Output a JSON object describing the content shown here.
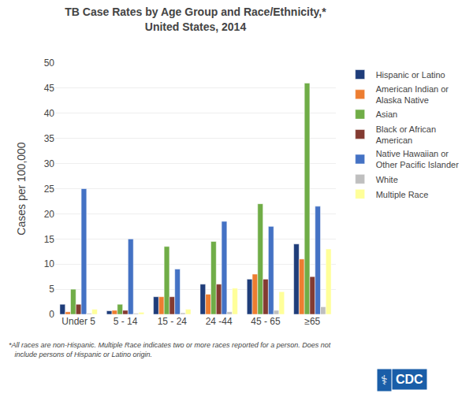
{
  "chart_data": {
    "type": "bar",
    "title": "TB Case Rates by Age Group and Race/Ethnicity,*\nUnited States, 2014",
    "y_label": "Cases per 100,000",
    "categories": [
      "Under 5",
      "5 - 14",
      "15 - 24",
      "24 -44",
      "45 - 65",
      "≥65"
    ],
    "series": [
      {
        "name": "Hispanic or Latino",
        "color": "#1F3D7A",
        "values": [
          2.0,
          0.7,
          3.5,
          6.0,
          7.0,
          14.0
        ]
      },
      {
        "name": "American Indian or\nAlaska Native",
        "color": "#ED7D31",
        "values": [
          0.5,
          0.8,
          3.5,
          4.0,
          8.0,
          11.0
        ]
      },
      {
        "name": "Asian",
        "color": "#70AD47",
        "values": [
          5.0,
          2.0,
          13.5,
          14.5,
          22.0,
          46.0
        ]
      },
      {
        "name": "Black or African\nAmerican",
        "color": "#833B31",
        "values": [
          2.0,
          0.8,
          3.5,
          6.0,
          7.0,
          7.5
        ]
      },
      {
        "name": "Native Hawaiian or\nOther Pacific Islander",
        "color": "#4472C4",
        "values": [
          25.0,
          15.0,
          9.0,
          18.5,
          17.5,
          21.5
        ]
      },
      {
        "name": "White",
        "color": "#BFBFBF",
        "values": [
          0.2,
          0.2,
          0.3,
          0.5,
          0.8,
          1.5
        ]
      },
      {
        "name": "Multiple Race",
        "color": "#FFFF99",
        "values": [
          1.0,
          0.4,
          1.0,
          5.2,
          4.5,
          13.0
        ]
      }
    ],
    "ylim": [
      0,
      50
    ],
    "yticks": [
      0,
      5,
      10,
      15,
      20,
      25,
      30,
      35,
      40,
      45,
      50
    ],
    "grid": true,
    "legend": "right",
    "annotations": [
      "*All races are non-Hispanic. Multiple Race indicates two or more races reported for a person. Does not\n   include persons of Hispanic or Latino origin.",
      "⚕",
      "CDC"
    ]
  }
}
